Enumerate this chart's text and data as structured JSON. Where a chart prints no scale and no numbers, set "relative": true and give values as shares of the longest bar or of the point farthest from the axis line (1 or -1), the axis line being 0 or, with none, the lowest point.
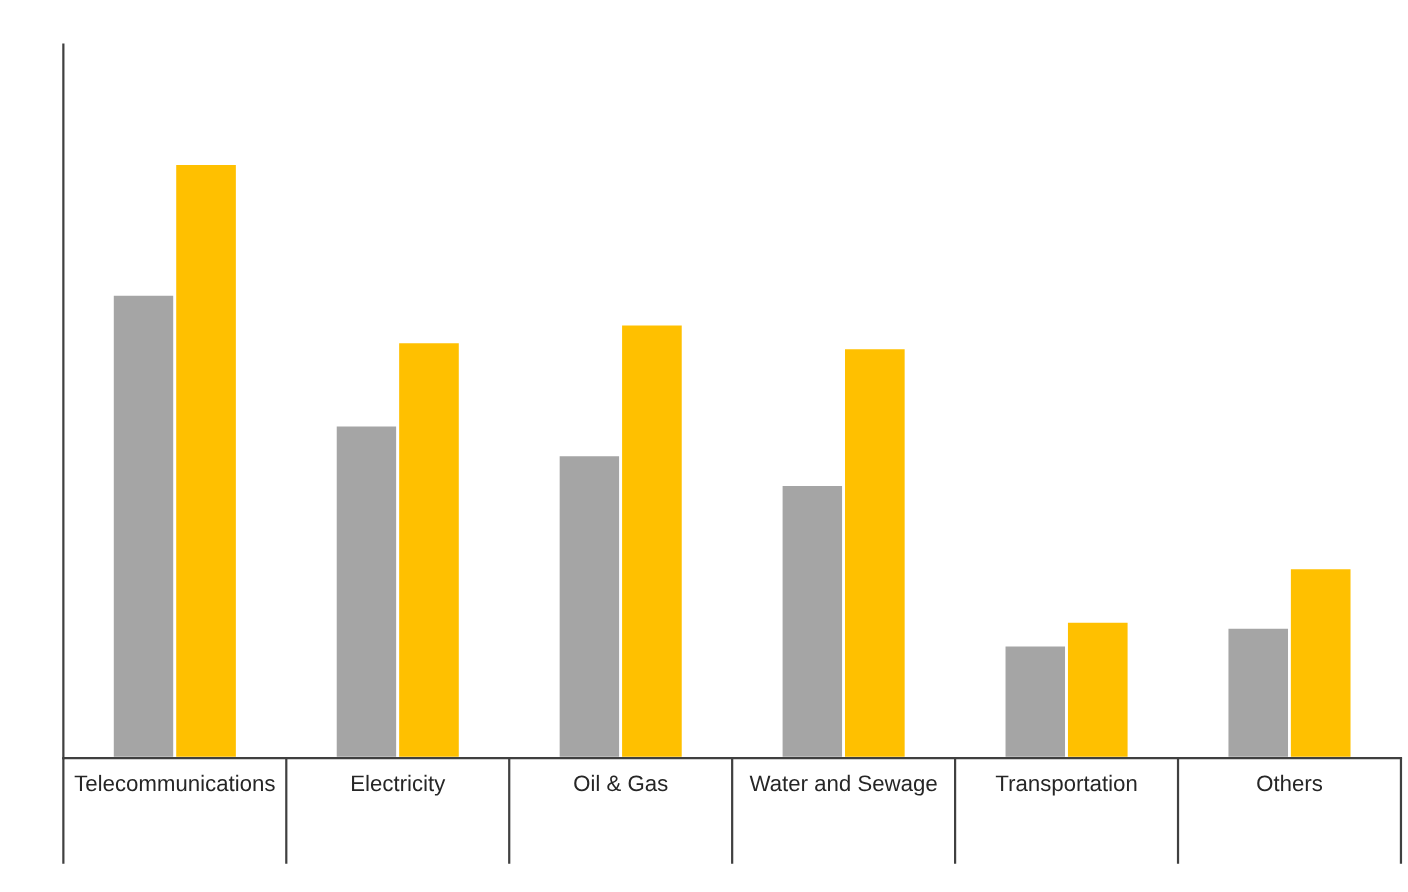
{
  "chart_data": {
    "type": "bar",
    "relative": true,
    "categories": [
      "Telecommunications",
      "Electricity",
      "Oil & Gas",
      "Water and Sewage",
      "Transportation",
      "Others"
    ],
    "series": [
      {
        "color": "#a5a5a5",
        "values": [
          0.78,
          0.56,
          0.51,
          0.46,
          0.19,
          0.22
        ]
      },
      {
        "color": "#ffc000",
        "values": [
          1,
          0.7,
          0.73,
          0.69,
          0.23,
          0.32
        ]
      }
    ]
  }
}
